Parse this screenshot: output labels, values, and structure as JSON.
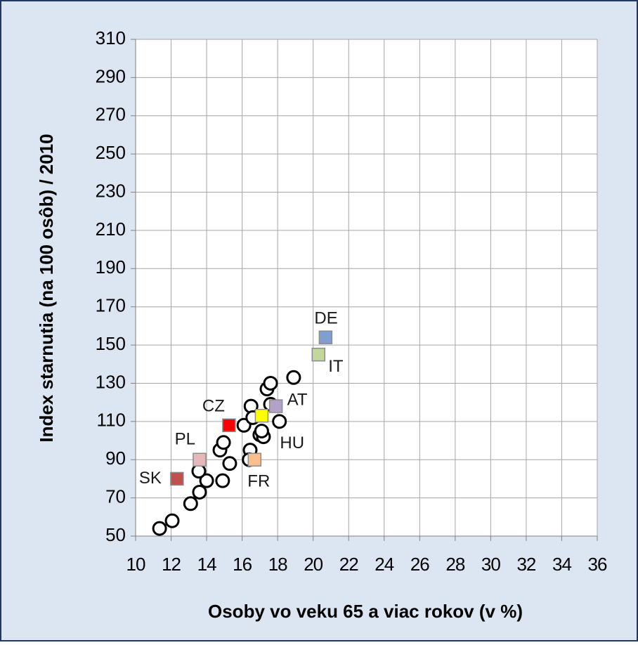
{
  "chart_data": {
    "type": "scatter",
    "ylabel": "Index starnutia (na 100 osôb) / 2010",
    "xlabel": "Osoby vo veku 65 a viac rokov (v %)",
    "xlim": [
      10,
      36
    ],
    "xticks": [
      10,
      12,
      14,
      16,
      18,
      20,
      22,
      24,
      26,
      28,
      30,
      32,
      34,
      36
    ],
    "ylim": [
      50,
      310
    ],
    "yticks": [
      50,
      70,
      90,
      110,
      130,
      150,
      170,
      190,
      210,
      230,
      250,
      270,
      290,
      310
    ],
    "grid": true,
    "series": [
      {
        "color": "#ffffff",
        "x": [
          11.35,
          12.06,
          13.1,
          13.6,
          14.0,
          14.9,
          13.56,
          15.3,
          14.75,
          14.95,
          16.1,
          16.5,
          16.45,
          16.4,
          17.0,
          17.2,
          17.1,
          17.4,
          17.6,
          17.6,
          18.1,
          18.9,
          16.6
        ],
        "y": [
          54,
          58,
          67,
          73,
          79,
          79,
          84,
          88,
          95,
          99,
          108,
          118,
          95,
          90,
          103,
          102,
          105,
          127,
          130,
          119,
          110,
          133,
          112
        ]
      },
      {
        "labels": [
          "SK",
          "PL",
          "CZ",
          "FR",
          "HU",
          "AT",
          "IT",
          "DE"
        ],
        "colors": [
          "#c0504d",
          "#e6b9b8",
          "#ff0000",
          "#fabf8f",
          "#ffff00",
          "#b3a2c7",
          "#c3d69b",
          "#7f9fd0"
        ],
        "x": [
          12.33,
          13.6,
          15.26,
          16.7,
          17.1,
          17.9,
          20.3,
          20.7
        ],
        "y": [
          80,
          90,
          108,
          90,
          113,
          118,
          145,
          154
        ]
      }
    ]
  }
}
